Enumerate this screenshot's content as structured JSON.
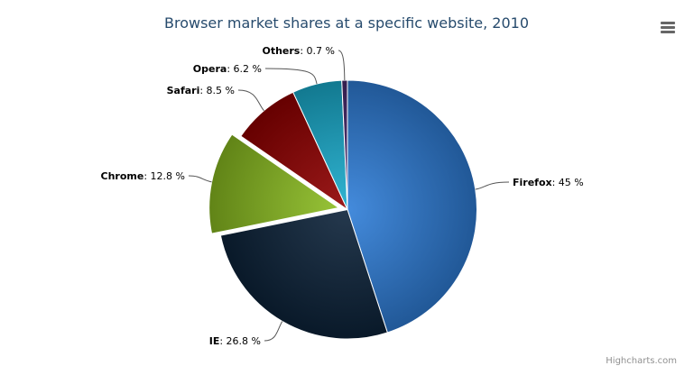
{
  "chart_data": {
    "type": "pie",
    "title": "Browser market shares at a specific website, 2010",
    "unit": "%",
    "slices": [
      {
        "name": "Firefox",
        "value": 45,
        "color": "#2f7ed8",
        "sliced": false
      },
      {
        "name": "IE",
        "value": 26.8,
        "color": "#0d233a",
        "sliced": false
      },
      {
        "name": "Chrome",
        "value": 12.8,
        "color": "#8bbc21",
        "sliced": true
      },
      {
        "name": "Safari",
        "value": 8.5,
        "color": "#910000",
        "sliced": false
      },
      {
        "name": "Opera",
        "value": 6.2,
        "color": "#1aadce",
        "sliced": false
      },
      {
        "name": "Others",
        "value": 0.7,
        "color": "#492970",
        "sliced": false
      }
    ],
    "labels": [
      "Firefox: 45 %",
      "IE: 26.8 %",
      "Chrome: 12.8 %",
      "Safari: 8.5 %",
      "Opera: 6.2 %",
      "Others: 0.7 %"
    ]
  },
  "credits": "Highcharts.com",
  "menu_icon": "hamburger-menu-icon"
}
